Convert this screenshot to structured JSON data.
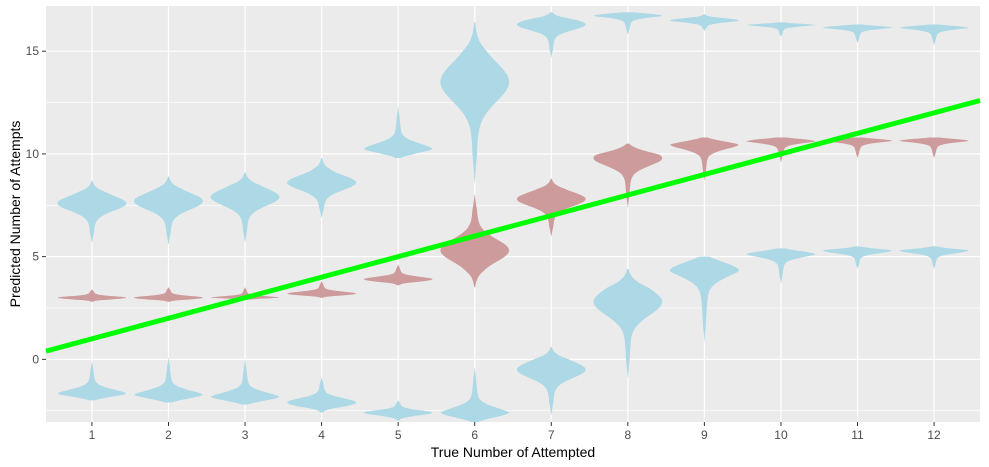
{
  "chart_data": {
    "type": "violin",
    "title": "",
    "xlabel": "True Number of Attempted",
    "ylabel": "Predicted Number of Attempts",
    "x_categories": [
      "1",
      "2",
      "3",
      "4",
      "5",
      "6",
      "7",
      "8",
      "9",
      "10",
      "11",
      "12"
    ],
    "y_ticks": [
      0,
      5,
      10,
      15
    ],
    "y_tick_labels": [
      "0",
      "5",
      "10",
      "15"
    ],
    "ylim": [
      -3.05,
      17.2
    ],
    "grid": true,
    "legend": "none",
    "colors": {
      "blue": "#add8e6",
      "red": "#cd9b9b",
      "line": "#00ff00",
      "panel": "#ebebeb",
      "grid": "#ffffff"
    },
    "reference_line": {
      "x": [
        0.4,
        12.6
      ],
      "y": [
        0.4,
        12.6
      ]
    },
    "series": [
      {
        "color": "blue",
        "violins": [
          {
            "x": 1,
            "ymin": 5.7,
            "ymax": 8.7,
            "mode": 7.6,
            "width": 0.45
          },
          {
            "x": 2,
            "ymin": 5.6,
            "ymax": 8.9,
            "mode": 7.7,
            "width": 0.45
          },
          {
            "x": 3,
            "ymin": 5.7,
            "ymax": 9.1,
            "mode": 7.9,
            "width": 0.45
          },
          {
            "x": 4,
            "ymin": 6.9,
            "ymax": 9.8,
            "mode": 8.6,
            "width": 0.45
          },
          {
            "x": 5,
            "ymin": 9.8,
            "ymax": 12.3,
            "mode": 10.2,
            "width": 0.45
          },
          {
            "x": 6,
            "ymin": 8.6,
            "ymax": 16.4,
            "mode": 13.5,
            "width": 0.45
          },
          {
            "x": 7,
            "ymin": 14.7,
            "ymax": 16.9,
            "mode": 16.3,
            "width": 0.45
          },
          {
            "x": 8,
            "ymin": 15.8,
            "ymax": 16.9,
            "mode": 16.8,
            "width": 0.45
          },
          {
            "x": 9,
            "ymin": 16.0,
            "ymax": 16.8,
            "mode": 16.5,
            "width": 0.45
          },
          {
            "x": 10,
            "ymin": 15.7,
            "ymax": 16.4,
            "mode": 16.3,
            "width": 0.45
          },
          {
            "x": 11,
            "ymin": 15.4,
            "ymax": 16.3,
            "mode": 16.2,
            "width": 0.45
          },
          {
            "x": 12,
            "ymin": 15.3,
            "ymax": 16.3,
            "mode": 16.2,
            "width": 0.45
          },
          {
            "x": 1,
            "ymin": -2.0,
            "ymax": -0.1,
            "mode": -1.7,
            "width": 0.45
          },
          {
            "x": 2,
            "ymin": -2.1,
            "ymax": 0.1,
            "mode": -1.8,
            "width": 0.45
          },
          {
            "x": 3,
            "ymin": -2.2,
            "ymax": 0.0,
            "mode": -1.9,
            "width": 0.45
          },
          {
            "x": 4,
            "ymin": -2.6,
            "ymax": -0.9,
            "mode": -2.1,
            "width": 0.45
          },
          {
            "x": 5,
            "ymin": -3.0,
            "ymax": -2.0,
            "mode": -2.6,
            "width": 0.45
          },
          {
            "x": 6,
            "ymin": -3.05,
            "ymax": -0.4,
            "mode": -2.7,
            "width": 0.45
          },
          {
            "x": 7,
            "ymin": -2.7,
            "ymax": 0.6,
            "mode": -0.5,
            "width": 0.45
          },
          {
            "x": 8,
            "ymin": -0.9,
            "ymax": 4.4,
            "mode": 2.8,
            "width": 0.45
          },
          {
            "x": 9,
            "ymin": 0.8,
            "ymax": 5.0,
            "mode": 4.6,
            "width": 0.45
          },
          {
            "x": 10,
            "ymin": 3.7,
            "ymax": 5.4,
            "mode": 5.2,
            "width": 0.45
          },
          {
            "x": 11,
            "ymin": 4.4,
            "ymax": 5.5,
            "mode": 5.3,
            "width": 0.45
          },
          {
            "x": 12,
            "ymin": 4.4,
            "ymax": 5.5,
            "mode": 5.3,
            "width": 0.45
          }
        ]
      },
      {
        "color": "red",
        "violins": [
          {
            "x": 1,
            "ymin": 2.8,
            "ymax": 3.4,
            "mode": 3.0,
            "width": 0.45
          },
          {
            "x": 2,
            "ymin": 2.8,
            "ymax": 3.5,
            "mode": 3.0,
            "width": 0.45
          },
          {
            "x": 3,
            "ymin": 2.9,
            "ymax": 3.5,
            "mode": 3.0,
            "width": 0.45
          },
          {
            "x": 4,
            "ymin": 3.0,
            "ymax": 3.8,
            "mode": 3.2,
            "width": 0.45
          },
          {
            "x": 5,
            "ymin": 3.6,
            "ymax": 4.6,
            "mode": 3.9,
            "width": 0.45
          },
          {
            "x": 6,
            "ymin": 3.5,
            "ymax": 8.0,
            "mode": 5.3,
            "width": 0.45
          },
          {
            "x": 7,
            "ymin": 6.0,
            "ymax": 8.8,
            "mode": 7.8,
            "width": 0.45
          },
          {
            "x": 8,
            "ymin": 7.4,
            "ymax": 10.5,
            "mode": 9.8,
            "width": 0.45
          },
          {
            "x": 9,
            "ymin": 8.7,
            "ymax": 10.8,
            "mode": 10.5,
            "width": 0.45
          },
          {
            "x": 10,
            "ymin": 9.6,
            "ymax": 10.8,
            "mode": 10.7,
            "width": 0.45
          },
          {
            "x": 11,
            "ymin": 9.8,
            "ymax": 10.8,
            "mode": 10.7,
            "width": 0.45
          },
          {
            "x": 12,
            "ymin": 9.8,
            "ymax": 10.8,
            "mode": 10.7,
            "width": 0.45
          }
        ]
      }
    ]
  }
}
